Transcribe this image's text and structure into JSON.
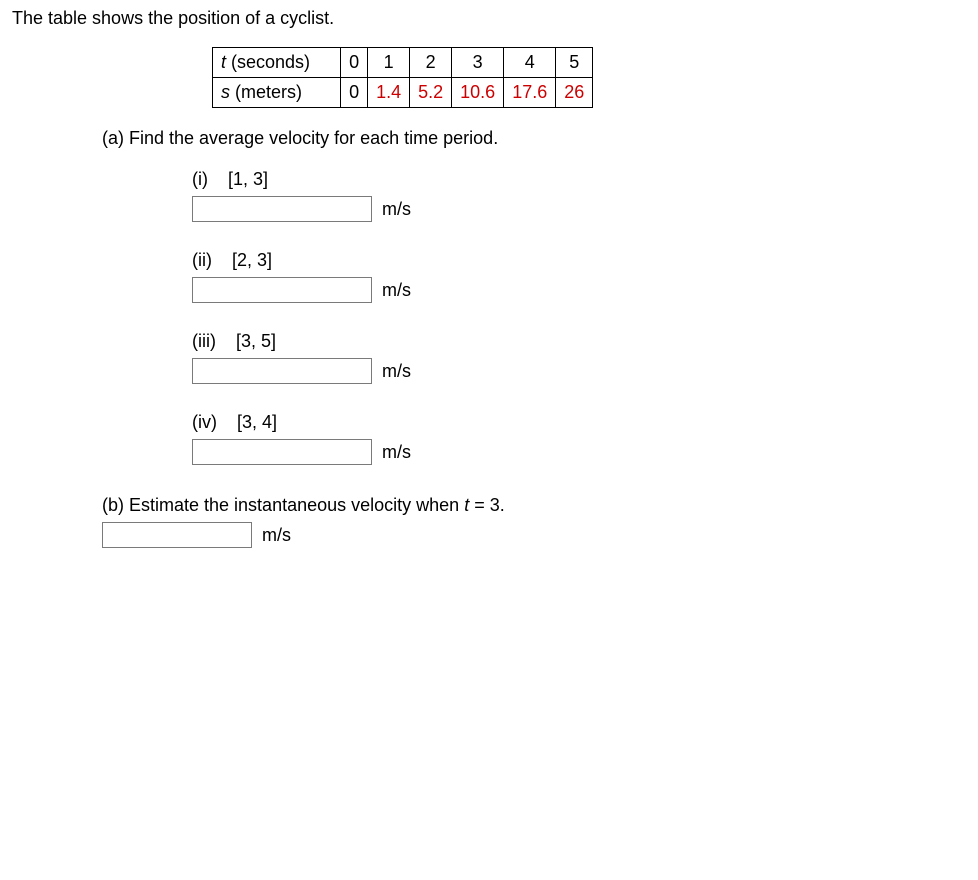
{
  "intro": "The table shows the position of a cyclist.",
  "table": {
    "row1_label_pre": "t",
    "row1_label_post": " (seconds)",
    "row1_vals": [
      "0",
      "1",
      "2",
      "3",
      "4",
      "5"
    ],
    "row2_label_pre": "s",
    "row2_label_post": " (meters)",
    "row2_vals": [
      "0",
      "1.4",
      "5.2",
      "10.6",
      "17.6",
      "26"
    ]
  },
  "partA": {
    "prompt": "(a) Find the average velocity for each time period.",
    "unit": "m/s",
    "items": [
      {
        "num": "(i)",
        "interval": "[1, 3]"
      },
      {
        "num": "(ii)",
        "interval": "[2, 3]"
      },
      {
        "num": "(iii)",
        "interval": "[3, 5]"
      },
      {
        "num": "(iv)",
        "interval": "[3, 4]"
      }
    ]
  },
  "partB": {
    "prompt_pre": "(b) Estimate the instantaneous velocity when ",
    "prompt_var": "t",
    "prompt_post": " = 3.",
    "unit": "m/s"
  }
}
